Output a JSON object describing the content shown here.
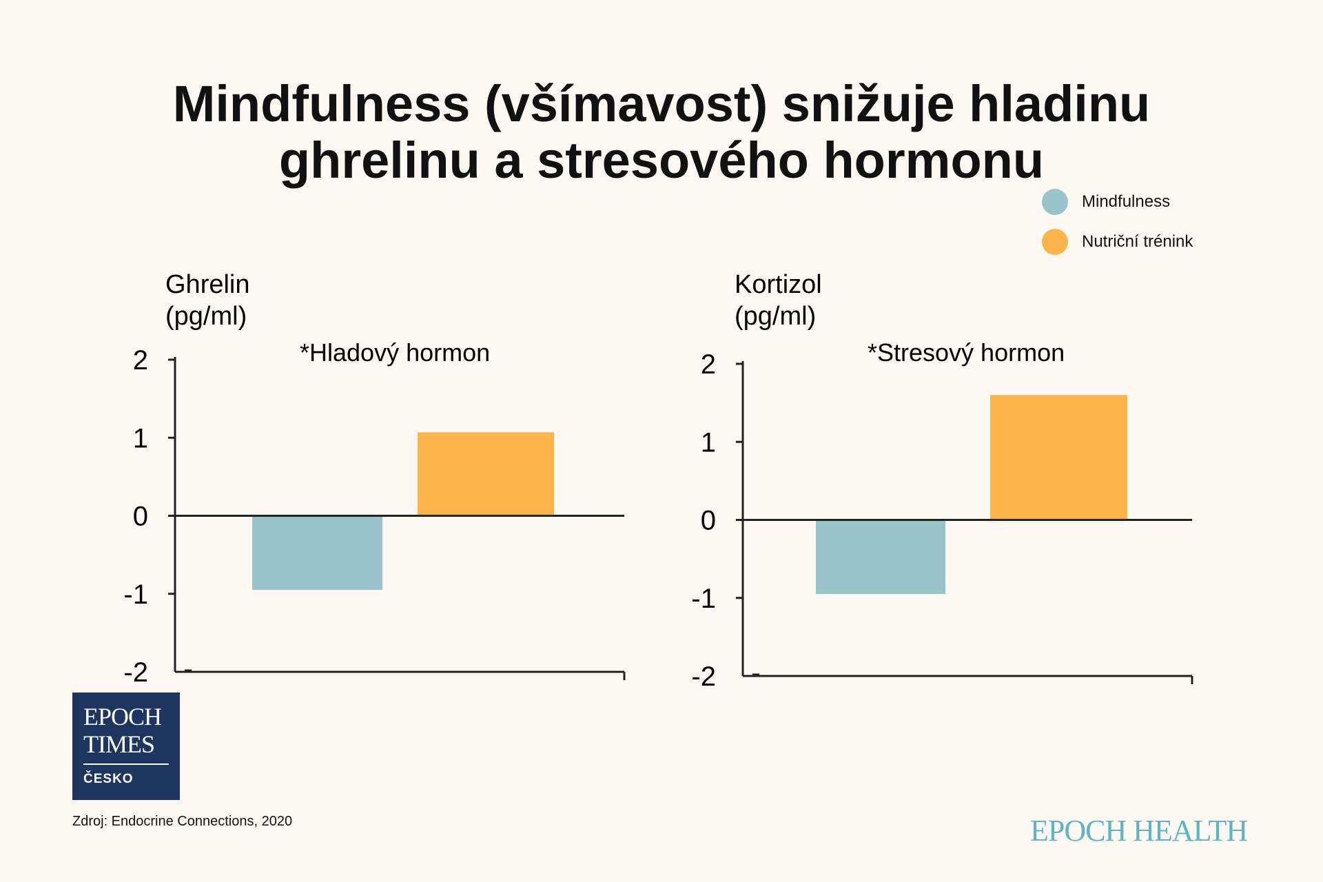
{
  "title_line1": "Mindfulness (všímavost) snižuje hladinu",
  "title_line2": "ghrelinu a stresového hormonu",
  "legend": [
    {
      "label": "Mindfulness",
      "color": "#9ac4cc"
    },
    {
      "label": "Nutriční trénink",
      "color": "#fdb44b"
    }
  ],
  "chart_data": [
    {
      "type": "bar",
      "ylabel_line1": "Ghrelin",
      "ylabel_line2": "(pg/ml)",
      "subtitle": "*Hladový hormon",
      "ylim": [
        -2,
        2
      ],
      "yticks": [
        2,
        1,
        0,
        -1,
        -2
      ],
      "series": [
        {
          "name": "Mindfulness",
          "values": [
            -0.95
          ]
        },
        {
          "name": "Nutriční trénink",
          "values": [
            1.07
          ]
        }
      ]
    },
    {
      "type": "bar",
      "ylabel_line1": "Kortizol",
      "ylabel_line2": "(pg/ml)",
      "subtitle": "*Stresový hormon",
      "ylim": [
        -2,
        2
      ],
      "yticks": [
        2,
        1,
        0,
        -1,
        -2
      ],
      "series": [
        {
          "name": "Mindfulness",
          "values": [
            -0.95
          ]
        },
        {
          "name": "Nutriční trénink",
          "values": [
            1.6
          ]
        }
      ]
    }
  ],
  "logo": {
    "line1": "EPOCH",
    "line2": "TIMES",
    "line3": "ČESKO"
  },
  "source": "Zdroj: Endocrine Connections, 2020",
  "brand": "EPOCH HEALTH"
}
